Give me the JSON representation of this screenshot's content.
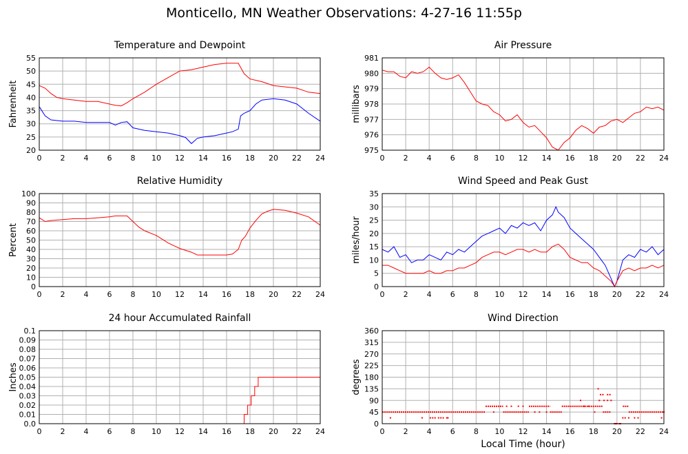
{
  "page_title": "Monticello, MN Weather Observations: 4-27-16 11:55p",
  "colors": {
    "red_series": "#ff0000",
    "blue_series": "#0000ff",
    "grid": "#b0b0b0",
    "frame": "#000000"
  },
  "chart_data": [
    {
      "type": "line",
      "title": "Temperature and Dewpoint",
      "xlabel": "",
      "ylabel": "Fahrenheit",
      "xlim": [
        0,
        24
      ],
      "ylim": [
        20,
        55
      ],
      "x_ticks": [
        "0",
        "2",
        "4",
        "6",
        "8",
        "10",
        "12",
        "14",
        "16",
        "18",
        "20",
        "22",
        "24"
      ],
      "y_ticks": [
        "20",
        "25",
        "30",
        "35",
        "40",
        "45",
        "50",
        "55"
      ],
      "grid": true,
      "series": [
        {
          "color": "#ff0000",
          "x": [
            0,
            0.5,
            1,
            1.5,
            2,
            3,
            4,
            5,
            6,
            6.5,
            7,
            7.5,
            8,
            9,
            10,
            11,
            12,
            13,
            14,
            15,
            16,
            16.5,
            17,
            17.5,
            18,
            19,
            20,
            21,
            22,
            23,
            24
          ],
          "values": [
            44.5,
            43.5,
            41.5,
            40,
            39.5,
            39,
            38.5,
            38.5,
            37.5,
            37,
            36.8,
            38,
            39.5,
            42,
            45,
            47.5,
            50,
            50.5,
            51.5,
            52.5,
            53,
            53,
            53,
            49,
            47,
            46,
            44.5,
            44,
            43.5,
            42,
            41.5
          ]
        },
        {
          "color": "#0000ff",
          "x": [
            0,
            0.5,
            1,
            2,
            3,
            4,
            5,
            6,
            6.5,
            7,
            7.5,
            8,
            9,
            10,
            11,
            12,
            12.5,
            13,
            13.5,
            14,
            15,
            16,
            16.5,
            17,
            17.2,
            17.5,
            18,
            18.5,
            19,
            20,
            21,
            22,
            23,
            24
          ],
          "values": [
            36.5,
            33,
            31.5,
            31,
            31,
            30.5,
            30.5,
            30.5,
            29.5,
            30.5,
            30.8,
            28.5,
            27.5,
            27,
            26.5,
            25.5,
            24.8,
            22.5,
            24.5,
            25,
            25.5,
            26.5,
            27,
            28,
            33,
            34,
            35,
            37.5,
            39,
            39.5,
            39,
            37.5,
            34,
            31
          ]
        }
      ]
    },
    {
      "type": "line",
      "title": "Air Pressure",
      "xlabel": "",
      "ylabel": "millibars",
      "xlim": [
        0,
        24
      ],
      "ylim": [
        975,
        981
      ],
      "x_ticks": [
        "0",
        "2",
        "4",
        "6",
        "8",
        "10",
        "12",
        "14",
        "16",
        "18",
        "20",
        "22",
        "24"
      ],
      "y_ticks": [
        "975",
        "976",
        "977",
        "978",
        "979",
        "980",
        "981"
      ],
      "grid": true,
      "series": [
        {
          "color": "#ff0000",
          "x": [
            0,
            0.5,
            1,
            1.5,
            2,
            2.5,
            3,
            3.5,
            4,
            4.5,
            5,
            5.5,
            6,
            6.5,
            7,
            7.5,
            8,
            8.5,
            9,
            9.5,
            10,
            10.5,
            11,
            11.5,
            12,
            12.5,
            13,
            13.5,
            14,
            14.5,
            15,
            15.5,
            16,
            16.5,
            17,
            17.5,
            18,
            18.5,
            19,
            19.5,
            20,
            20.5,
            21,
            21.5,
            22,
            22.5,
            23,
            23.5,
            24
          ],
          "values": [
            980.2,
            980.1,
            980.1,
            979.8,
            979.7,
            980.1,
            980.0,
            980.1,
            980.4,
            980.0,
            979.7,
            979.6,
            979.7,
            979.9,
            979.4,
            978.8,
            978.2,
            978.0,
            977.9,
            977.5,
            977.3,
            976.9,
            977.0,
            977.3,
            976.8,
            976.5,
            976.6,
            976.2,
            975.8,
            975.2,
            975.0,
            975.5,
            975.8,
            976.3,
            976.6,
            976.4,
            976.1,
            976.5,
            976.6,
            976.9,
            977.0,
            976.8,
            977.1,
            977.4,
            977.5,
            977.8,
            977.7,
            977.8,
            977.6
          ]
        }
      ]
    },
    {
      "type": "line",
      "title": "Relative Humidity",
      "xlabel": "",
      "ylabel": "Percent",
      "xlim": [
        0,
        24
      ],
      "ylim": [
        0,
        100
      ],
      "x_ticks": [
        "0",
        "2",
        "4",
        "6",
        "8",
        "10",
        "12",
        "14",
        "16",
        "18",
        "20",
        "22",
        "24"
      ],
      "y_ticks": [
        "0",
        "10",
        "20",
        "30",
        "40",
        "50",
        "60",
        "70",
        "80",
        "90",
        "100"
      ],
      "grid": true,
      "series": [
        {
          "color": "#ff0000",
          "x": [
            0,
            0.5,
            1,
            2,
            3,
            4,
            5,
            6,
            6.5,
            7,
            7.5,
            8,
            8.5,
            9,
            10,
            11,
            12,
            13,
            13.5,
            14,
            15,
            16,
            16.5,
            17,
            17.3,
            17.6,
            18,
            18.5,
            19,
            19.5,
            20,
            21,
            22,
            23,
            24
          ],
          "values": [
            74,
            70,
            71,
            72,
            73,
            73,
            74,
            75,
            76,
            76,
            76,
            70,
            64,
            60,
            55,
            47,
            41,
            37,
            34,
            34,
            34,
            34,
            35,
            40,
            50,
            54,
            63,
            71,
            78,
            81,
            83,
            82,
            79,
            75,
            66
          ]
        }
      ]
    },
    {
      "type": "line",
      "title": "Wind Speed and Peak Gust",
      "xlabel": "",
      "ylabel": "miles/hour",
      "xlim": [
        0,
        24
      ],
      "ylim": [
        0,
        35
      ],
      "x_ticks": [
        "0",
        "2",
        "4",
        "6",
        "8",
        "10",
        "12",
        "14",
        "16",
        "18",
        "20",
        "22",
        "24"
      ],
      "y_ticks": [
        "0",
        "5",
        "10",
        "15",
        "20",
        "25",
        "30",
        "35"
      ],
      "grid": true,
      "series": [
        {
          "color": "#0000ff",
          "x": [
            0,
            0.5,
            1,
            1.5,
            2,
            2.5,
            3,
            3.5,
            4,
            4.5,
            5,
            5.5,
            6,
            6.5,
            7,
            7.5,
            8,
            8.5,
            9,
            9.5,
            10,
            10.5,
            11,
            11.5,
            12,
            12.5,
            13,
            13.5,
            14,
            14.5,
            14.8,
            15,
            15.5,
            16,
            16.5,
            17,
            17.5,
            18,
            18.5,
            19,
            19.5,
            19.8,
            20,
            20.5,
            21,
            21.5,
            22,
            22.5,
            23,
            23.5,
            24
          ],
          "values": [
            14,
            13,
            15,
            11,
            12,
            9,
            10,
            10,
            12,
            11,
            10,
            13,
            12,
            14,
            13,
            15,
            17,
            19,
            20,
            21,
            22,
            20,
            23,
            22,
            24,
            23,
            24,
            21,
            25,
            27,
            30,
            28,
            26,
            22,
            20,
            18,
            16,
            14,
            11,
            8,
            3,
            0,
            2,
            10,
            12,
            11,
            14,
            13,
            15,
            12,
            14
          ]
        },
        {
          "color": "#ff0000",
          "x": [
            0,
            0.5,
            1,
            1.5,
            2,
            2.5,
            3,
            3.5,
            4,
            4.5,
            5,
            5.5,
            6,
            6.5,
            7,
            7.5,
            8,
            8.5,
            9,
            9.5,
            10,
            10.5,
            11,
            11.5,
            12,
            12.5,
            13,
            13.5,
            14,
            14.5,
            15,
            15.5,
            16,
            16.5,
            17,
            17.5,
            18,
            18.5,
            19,
            19.5,
            19.8,
            20,
            20.5,
            21,
            21.5,
            22,
            22.5,
            23,
            23.5,
            24
          ],
          "values": [
            8,
            8,
            7,
            6,
            5,
            5,
            5,
            5,
            6,
            5,
            5,
            6,
            6,
            7,
            7,
            8,
            9,
            11,
            12,
            13,
            13,
            12,
            13,
            14,
            14,
            13,
            14,
            13,
            13,
            15,
            16,
            14,
            11,
            10,
            9,
            9,
            7,
            6,
            4,
            2,
            0,
            2,
            6,
            7,
            6,
            7,
            7,
            8,
            7,
            8
          ]
        }
      ]
    },
    {
      "type": "line",
      "title": "24 hour Accumulated Rainfall",
      "xlabel": "",
      "ylabel": "Inches",
      "xlim": [
        0,
        24
      ],
      "ylim": [
        0,
        0.1
      ],
      "x_ticks": [
        "0",
        "2",
        "4",
        "6",
        "8",
        "10",
        "12",
        "14",
        "16",
        "18",
        "20",
        "22",
        "24"
      ],
      "y_ticks": [
        "0.0",
        "0.01",
        "0.02",
        "0.03",
        "0.04",
        "0.05",
        "0.06",
        "0.07",
        "0.08",
        "0.09",
        "0.1"
      ],
      "grid": true,
      "series": [
        {
          "color": "#ff0000",
          "x": [
            0,
            17.5,
            17.5,
            17.8,
            17.8,
            18.1,
            18.1,
            18.4,
            18.4,
            18.7,
            18.7,
            24
          ],
          "values": [
            0,
            0,
            0.01,
            0.01,
            0.02,
            0.02,
            0.03,
            0.03,
            0.04,
            0.04,
            0.05,
            0.05
          ]
        }
      ]
    },
    {
      "type": "scatter",
      "title": "Wind Direction",
      "xlabel": "Local Time (hour)",
      "ylabel": "degrees",
      "xlim": [
        0,
        24
      ],
      "ylim": [
        0,
        360
      ],
      "x_ticks": [
        "0",
        "2",
        "4",
        "6",
        "8",
        "10",
        "12",
        "14",
        "16",
        "18",
        "20",
        "22",
        "24"
      ],
      "y_ticks": [
        "0",
        "45",
        "90",
        "135",
        "180",
        "225",
        "270",
        "315",
        "360"
      ],
      "grid": true,
      "series": [
        {
          "color": "#ff0000",
          "segments": [
            {
              "x0": 0,
              "x1": 8.8,
              "y": 45
            },
            {
              "x0": 8.8,
              "x1": 10.3,
              "y": 67.5
            },
            {
              "x0": 10.3,
              "x1": 12.5,
              "y": 45
            },
            {
              "x0": 12.5,
              "x1": 14.3,
              "y": 67.5
            },
            {
              "x0": 14.3,
              "x1": 15.3,
              "y": 45
            },
            {
              "x0": 15.3,
              "x1": 18.8,
              "y": 67.5
            },
            {
              "x0": 18.8,
              "x1": 19.5,
              "y": 45
            },
            {
              "x0": 20.5,
              "x1": 21,
              "y": 67.5
            },
            {
              "x0": 21,
              "x1": 24,
              "y": 45
            }
          ],
          "points": [
            [
              0.7,
              22.5
            ],
            [
              3.4,
              22.5
            ],
            [
              4.1,
              22.5
            ],
            [
              4.3,
              22.5
            ],
            [
              4.5,
              22.5
            ],
            [
              4.8,
              22.5
            ],
            [
              5.0,
              22.5
            ],
            [
              5.2,
              22.5
            ],
            [
              5.5,
              22.5
            ],
            [
              5.6,
              22.5
            ],
            [
              9.5,
              45
            ],
            [
              10.6,
              67.5
            ],
            [
              11.0,
              67.5
            ],
            [
              11.6,
              67.5
            ],
            [
              12.0,
              67.5
            ],
            [
              13.0,
              45
            ],
            [
              13.4,
              45
            ],
            [
              14.0,
              45
            ],
            [
              16.9,
              90
            ],
            [
              17.2,
              67.5
            ],
            [
              17.6,
              67.5
            ],
            [
              18.1,
              45
            ],
            [
              18.4,
              135
            ],
            [
              18.6,
              112.5
            ],
            [
              18.9,
              90
            ],
            [
              19.2,
              90
            ],
            [
              19.2,
              112.5
            ],
            [
              19.4,
              112.5
            ],
            [
              19.5,
              90
            ],
            [
              19.8,
              0
            ],
            [
              19.9,
              0
            ],
            [
              20.0,
              0
            ],
            [
              20.2,
              0
            ],
            [
              20.3,
              0
            ],
            [
              20.5,
              22.5
            ],
            [
              20.7,
              22.5
            ],
            [
              21.0,
              22.5
            ],
            [
              21.5,
              22.5
            ],
            [
              21.8,
              22.5
            ],
            [
              23.8,
              22.5
            ],
            [
              24.0,
              45
            ],
            [
              18.5,
              90
            ],
            [
              18.8,
              112.5
            ]
          ]
        }
      ]
    }
  ]
}
